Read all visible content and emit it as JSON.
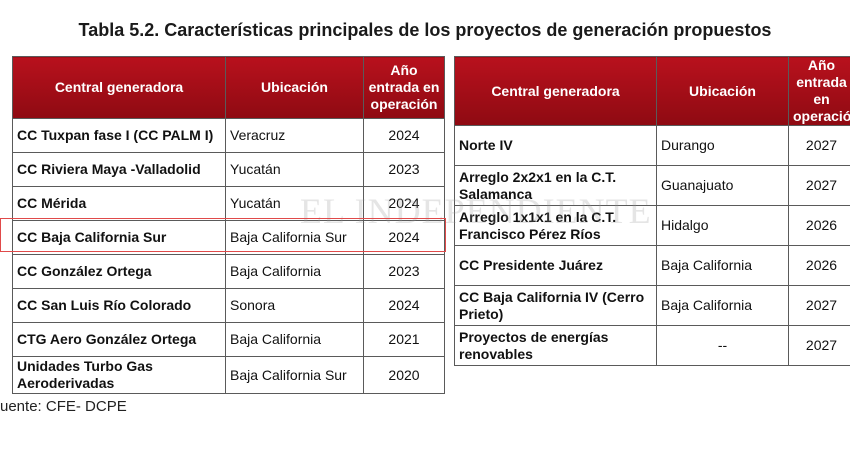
{
  "title": "Tabla 5.2. Características principales de los proyectos de generación propuestos",
  "headers": {
    "col1": "Central generadora",
    "col2": "Ubicación",
    "col3_line1": "Año",
    "col3_line2": "entrada en",
    "col3_line3": "operación"
  },
  "left_rows": [
    {
      "name": "CC Tuxpan fase I (CC PALM I)",
      "location": "Veracruz",
      "year": "2024"
    },
    {
      "name": "CC Riviera Maya -Valladolid",
      "location": "Yucatán",
      "year": "2023"
    },
    {
      "name": "CC Mérida",
      "location": "Yucatán",
      "year": "2024"
    },
    {
      "name": "CC Baja California Sur",
      "location": "Baja California Sur",
      "year": "2024"
    },
    {
      "name": "CC González Ortega",
      "location": "Baja California",
      "year": "2023"
    },
    {
      "name": "CC San Luis Río Colorado",
      "location": "Sonora",
      "year": "2024"
    },
    {
      "name": "CTG Aero González Ortega",
      "location": "Baja California",
      "year": "2021"
    },
    {
      "name_line1": "Unidades Turbo Gas",
      "name_line2": "Aeroderivadas",
      "location": "Baja California Sur",
      "year": "2020"
    }
  ],
  "right_rows": [
    {
      "name": "Norte IV",
      "location": "Durango",
      "year": "2027"
    },
    {
      "name_line1": "Arreglo 2x2x1 en la C.T.",
      "name_line2": "Salamanca",
      "location": "Guanajuato",
      "year": "2027"
    },
    {
      "name_line1": "Arreglo 1x1x1 en la C.T.",
      "name_line2": "Francisco Pérez Ríos",
      "location": "Hidalgo",
      "year": "2026"
    },
    {
      "name": "CC Presidente Juárez",
      "location": "Baja California",
      "year": "2026"
    },
    {
      "name_line1": "CC Baja California IV (Cerro",
      "name_line2": "Prieto)",
      "location": "Baja California",
      "year": "2027"
    },
    {
      "name_line1": "Proyectos de energías",
      "name_line2": "renovables",
      "location": "--",
      "year": "2027"
    }
  ],
  "watermark": "EL INDEPENDIENTE",
  "source": "uente: CFE- DCPE"
}
